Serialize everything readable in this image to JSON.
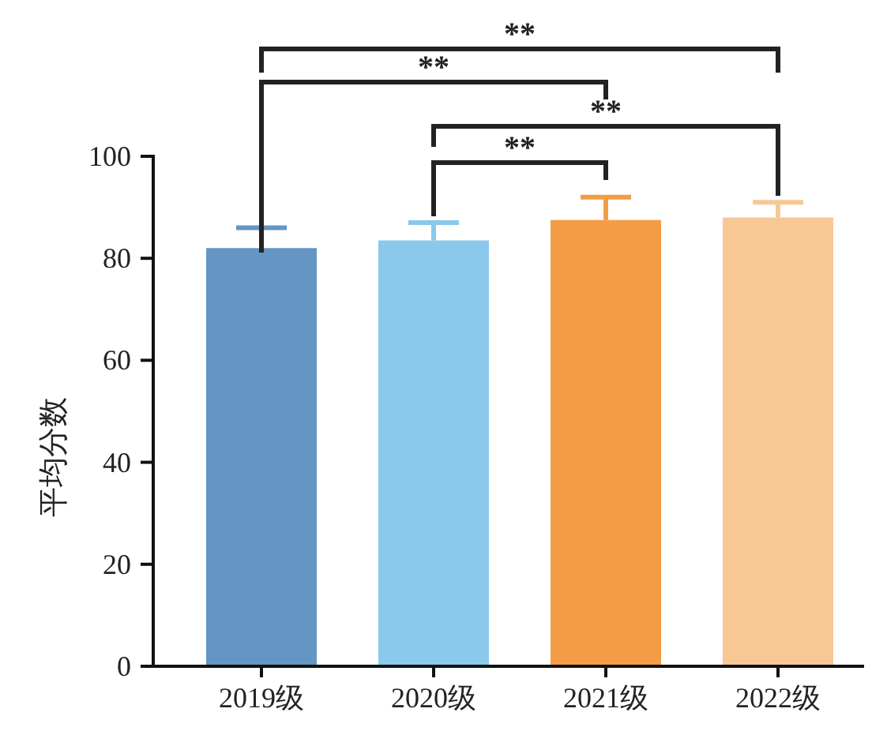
{
  "chart_data": {
    "type": "bar",
    "ylabel": "平均分数",
    "categories": [
      "2019级",
      "2020级",
      "2021级",
      "2022级"
    ],
    "values": [
      82,
      83.5,
      87.5,
      88
    ],
    "errors": [
      4,
      3.5,
      4.5,
      3
    ],
    "colors": [
      "#6496c4",
      "#8ac8ec",
      "#f39c45",
      "#f7c896"
    ],
    "ylim": [
      0,
      100
    ],
    "yticks": [
      0,
      20,
      40,
      60,
      80,
      100
    ],
    "grid": false,
    "annotations": [
      "**",
      "**",
      "**",
      "**"
    ]
  }
}
